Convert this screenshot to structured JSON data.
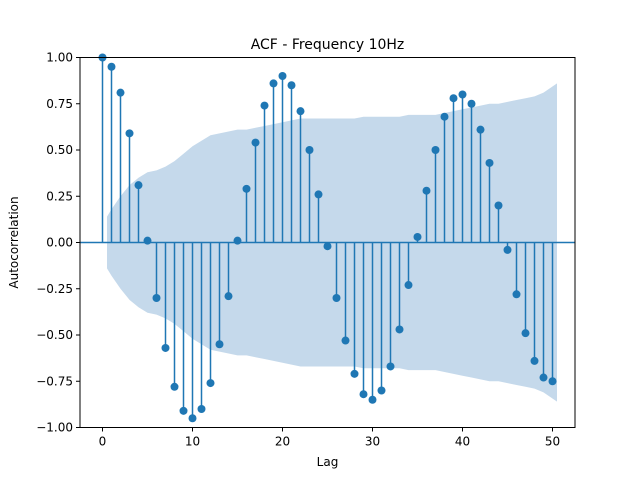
{
  "chart_data": {
    "type": "stem",
    "title": "ACF - Frequency 10Hz",
    "xlabel": "Lag",
    "ylabel": "Autocorrelation",
    "xlim": [
      -2.5,
      52.5
    ],
    "ylim": [
      -1.0,
      1.0
    ],
    "xticks": [
      0,
      10,
      20,
      30,
      40,
      50
    ],
    "yticks": [
      -1.0,
      -0.75,
      -0.5,
      -0.25,
      0.0,
      0.25,
      0.5,
      0.75,
      1.0
    ],
    "xtick_labels": [
      "0",
      "10",
      "20",
      "30",
      "40",
      "50"
    ],
    "ytick_labels": [
      "−1.00",
      "−0.75",
      "−0.50",
      "−0.25",
      "0.00",
      "0.25",
      "0.50",
      "0.75",
      "1.00"
    ],
    "grid": false,
    "colors": {
      "stem": "#1f77b4",
      "confidence_band": "#c5d9eb"
    },
    "series": [
      {
        "lags": [
          0,
          1,
          2,
          3,
          4,
          5,
          6,
          7,
          8,
          9,
          10,
          11,
          12,
          13,
          14,
          15,
          16,
          17,
          18,
          19,
          20,
          21,
          22,
          23,
          24,
          25,
          26,
          27,
          28,
          29,
          30,
          31,
          32,
          33,
          34,
          35,
          36,
          37,
          38,
          39,
          40,
          41,
          42,
          43,
          44,
          45,
          46,
          47,
          48,
          49,
          50
        ],
        "values": [
          1.0,
          0.95,
          0.81,
          0.59,
          0.31,
          0.01,
          -0.3,
          -0.57,
          -0.78,
          -0.91,
          -0.95,
          -0.9,
          -0.76,
          -0.55,
          -0.29,
          0.01,
          0.29,
          0.54,
          0.74,
          0.86,
          0.9,
          0.85,
          0.71,
          0.5,
          0.26,
          -0.02,
          -0.3,
          -0.53,
          -0.71,
          -0.82,
          -0.85,
          -0.8,
          -0.67,
          -0.47,
          -0.23,
          0.03,
          0.28,
          0.5,
          0.68,
          0.78,
          0.8,
          0.75,
          0.61,
          0.43,
          0.2,
          -0.04,
          -0.28,
          -0.49,
          -0.64,
          -0.73,
          -0.75
        ]
      }
    ],
    "confidence_band": {
      "lags": [
        0.5,
        1,
        2,
        3,
        4,
        5,
        6,
        7,
        8,
        9,
        10,
        11,
        12,
        13,
        14,
        15,
        16,
        17,
        18,
        19,
        20,
        21,
        22,
        23,
        24,
        25,
        26,
        27,
        28,
        29,
        30,
        31,
        32,
        33,
        34,
        35,
        36,
        37,
        38,
        39,
        40,
        41,
        42,
        43,
        44,
        45,
        46,
        47,
        48,
        49,
        50.5
      ],
      "upper": [
        0.14,
        0.18,
        0.25,
        0.31,
        0.35,
        0.38,
        0.39,
        0.41,
        0.44,
        0.48,
        0.52,
        0.55,
        0.58,
        0.59,
        0.6,
        0.61,
        0.61,
        0.62,
        0.63,
        0.64,
        0.65,
        0.66,
        0.67,
        0.67,
        0.67,
        0.67,
        0.67,
        0.67,
        0.67,
        0.68,
        0.68,
        0.68,
        0.68,
        0.68,
        0.69,
        0.69,
        0.69,
        0.69,
        0.7,
        0.71,
        0.72,
        0.73,
        0.74,
        0.75,
        0.75,
        0.76,
        0.77,
        0.78,
        0.79,
        0.81,
        0.86
      ]
    }
  }
}
